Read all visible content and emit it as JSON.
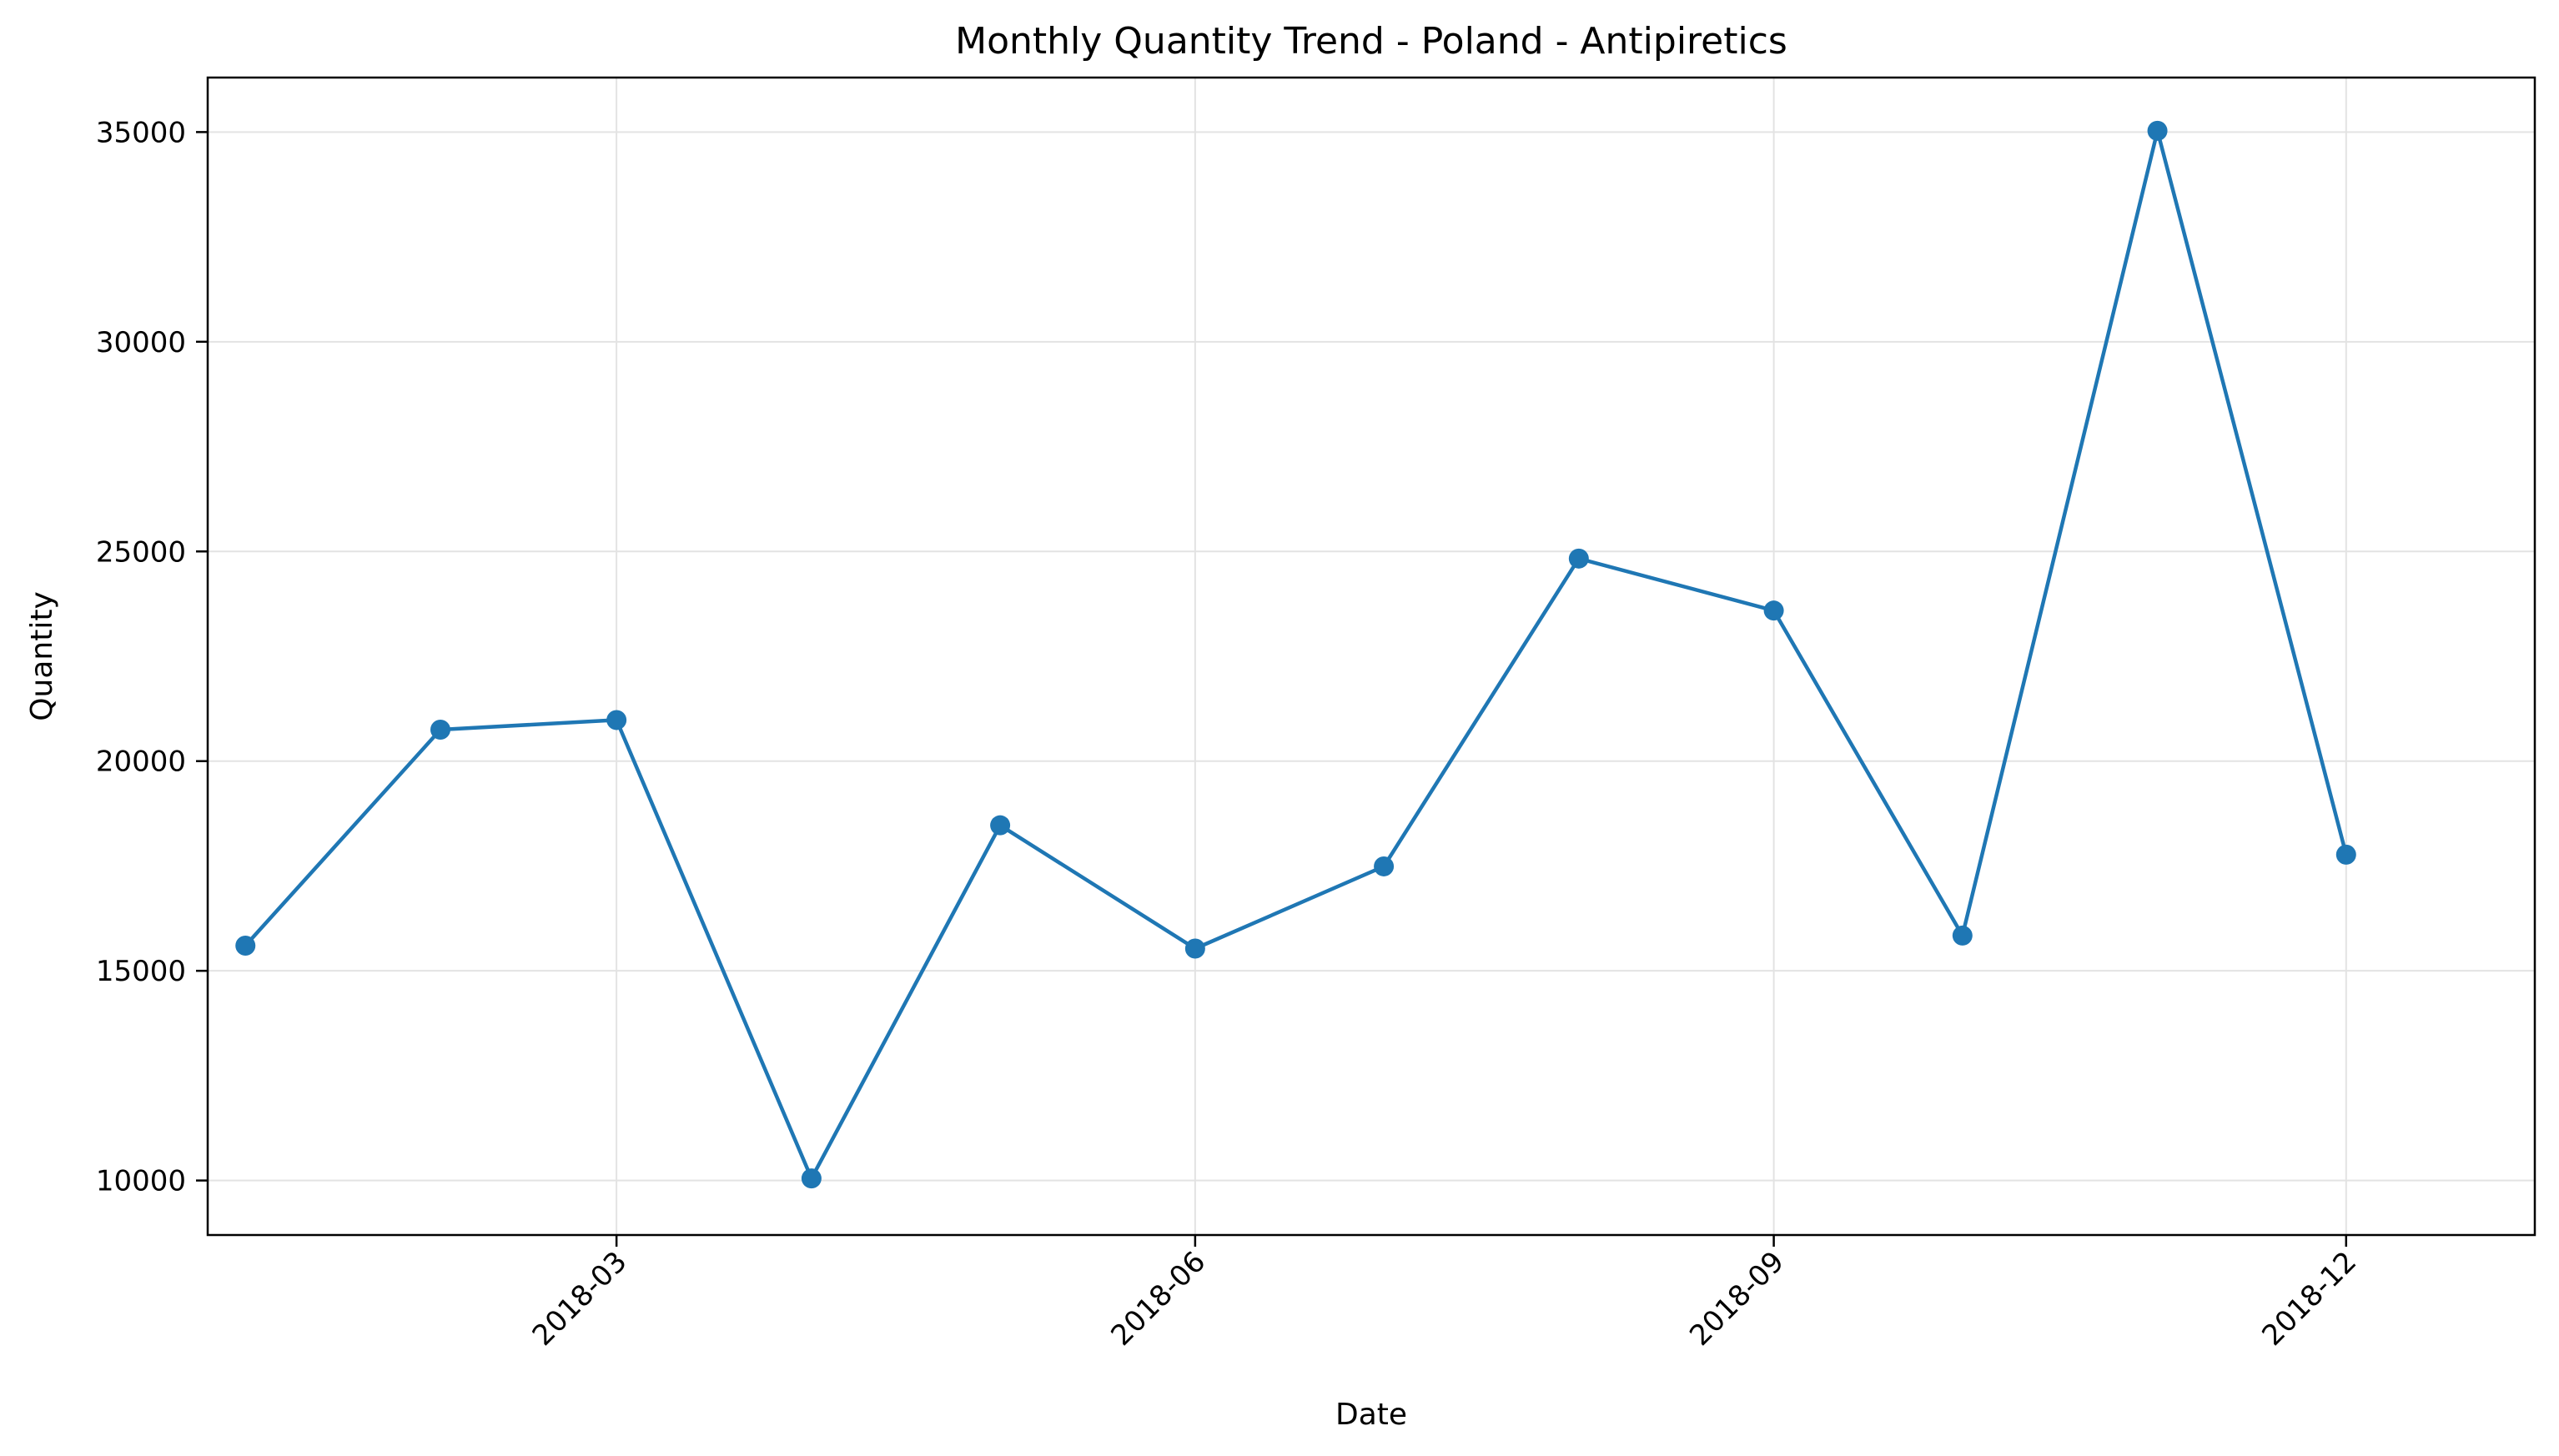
{
  "chart_data": {
    "type": "line",
    "title": "Monthly Quantity Trend - Poland - Antipiretics",
    "xlabel": "Date",
    "ylabel": "Quantity",
    "x_axis": "date",
    "xlim": [
      "2017-12-26",
      "2018-12-31"
    ],
    "ylim": [
      8700,
      36300
    ],
    "grid": true,
    "x_ticks": [
      "2018-03",
      "2018-06",
      "2018-09",
      "2018-12"
    ],
    "x_tick_dates": [
      "2018-03-01",
      "2018-06-01",
      "2018-09-01",
      "2018-12-01"
    ],
    "y_ticks": [
      10000,
      15000,
      20000,
      25000,
      30000,
      35000
    ],
    "line_color": "#1f77b4",
    "series": [
      {
        "x": [
          "2018-01-01",
          "2018-02-01",
          "2018-03-01",
          "2018-04-01",
          "2018-05-01",
          "2018-06-01",
          "2018-07-01",
          "2018-08-01",
          "2018-09-01",
          "2018-10-01",
          "2018-11-01",
          "2018-12-01"
        ],
        "y": [
          15600,
          20750,
          20980,
          10050,
          18470,
          15530,
          17490,
          24830,
          23590,
          15840,
          35030,
          17770
        ]
      }
    ]
  }
}
